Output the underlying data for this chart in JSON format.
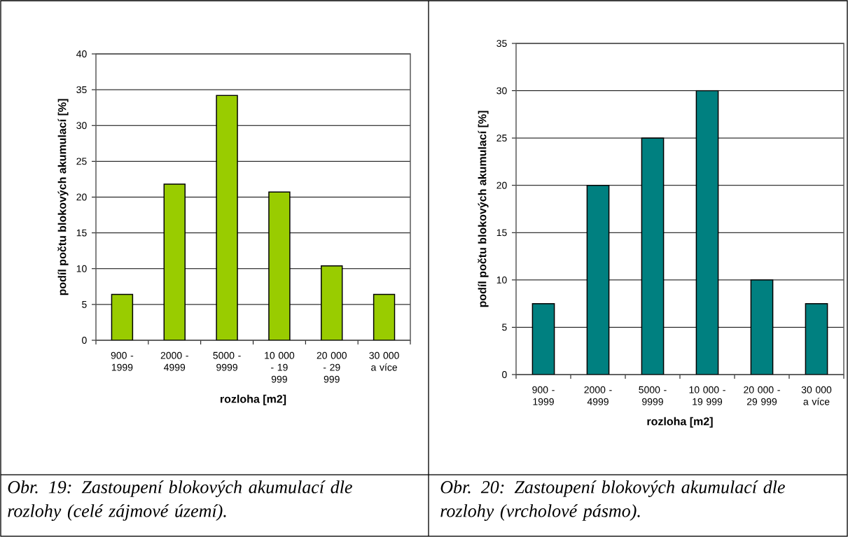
{
  "chart_data": [
    {
      "type": "bar",
      "categories": [
        "900 - 1999",
        "2000 - 4999",
        "5000 - 9999",
        "10 000 - 19 999",
        "20 000 - 29 999",
        "30 000 a více"
      ],
      "values": [
        6.4,
        21.8,
        34.2,
        20.7,
        10.4,
        6.4
      ],
      "color": "#99cc00",
      "xlabel": "rozloha [m2]",
      "ylabel": "podíl počtu blokových akumulací [%]",
      "ylim": [
        0,
        40
      ],
      "yticks": [
        0,
        5,
        10,
        15,
        20,
        25,
        30,
        35,
        40
      ],
      "grid": "y",
      "annotations": [
        "Obr. 19: Zastoupení blokových akumulací dle rozlohy (celé zájmové území)."
      ]
    },
    {
      "type": "bar",
      "categories": [
        "900 - 1999",
        "2000 - 4999",
        "5000 - 9999",
        "10 000 - 19 999",
        "20 000 - 29 999",
        "30 000 a více"
      ],
      "values": [
        7.5,
        20,
        25,
        30,
        10,
        7.5
      ],
      "color": "#008080",
      "xlabel": "rozloha [m2]",
      "ylabel": "podíl počtu blokových akumulací [%]",
      "ylim": [
        0,
        35
      ],
      "yticks": [
        0,
        5,
        10,
        15,
        20,
        25,
        30,
        35
      ],
      "grid": "y",
      "annotations": [
        "Obr. 20: Zastoupení blokových akumulací dle rozlohy (vrcholové pásmo)."
      ]
    }
  ]
}
